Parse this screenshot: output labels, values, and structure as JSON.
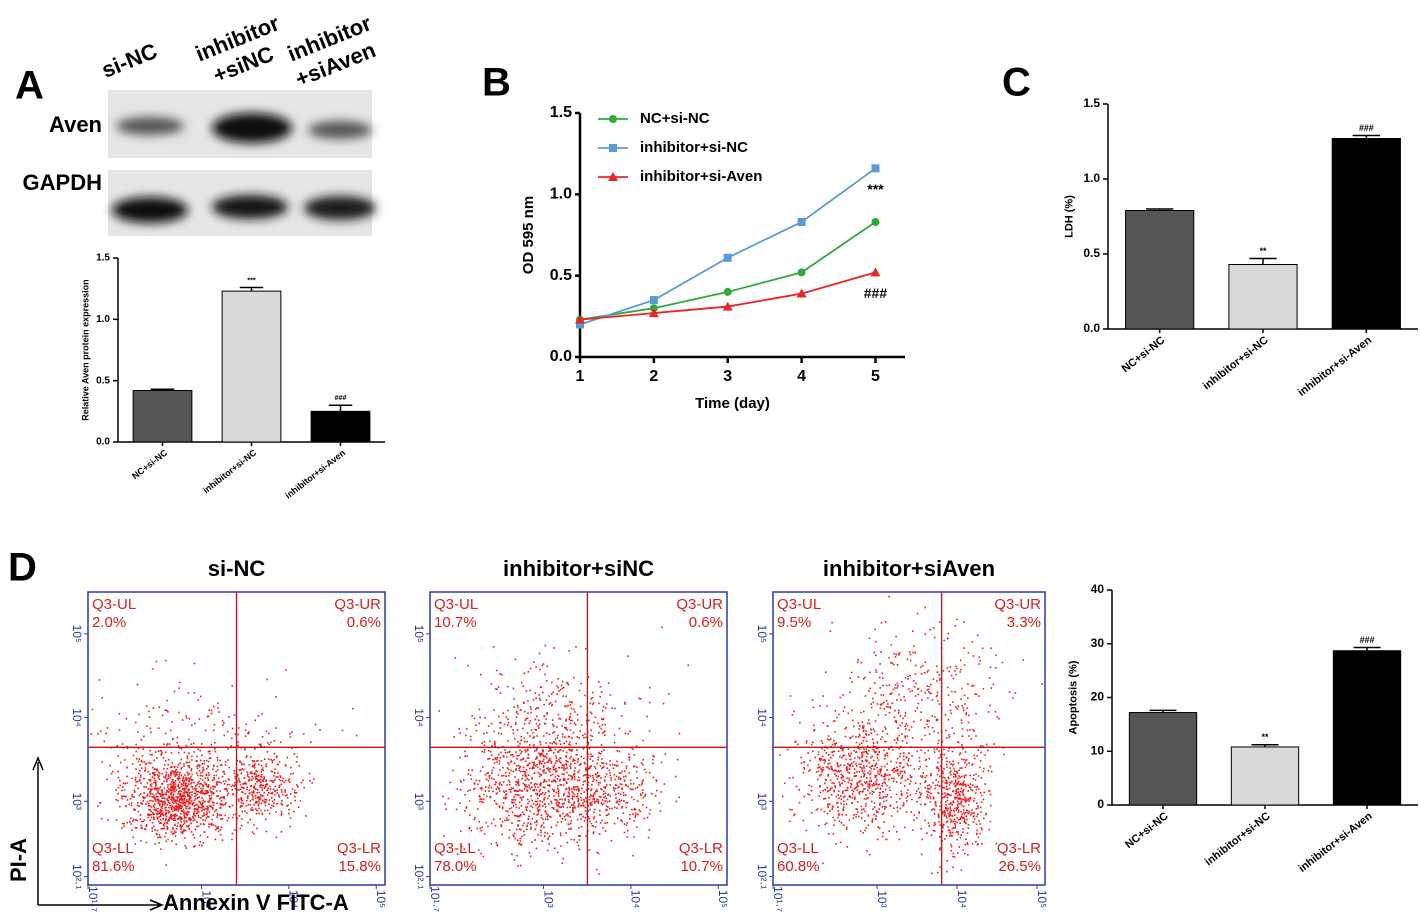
{
  "figure": {
    "panel_labels": [
      "A",
      "B",
      "C",
      "D"
    ],
    "blot": {
      "lanes": [
        [
          "si-NC"
        ],
        [
          "inhibitor",
          "+siNC"
        ],
        [
          "inhibitor",
          "+siAven"
        ]
      ],
      "rows": [
        "Aven",
        "GAPDH"
      ]
    },
    "flow": {
      "y_label": "PI-A",
      "x_label": "Annexin V FITC-A",
      "xlim": [
        1.7,
        5.1
      ],
      "ylim": [
        2.0,
        5.5
      ],
      "xticks": [
        {
          "value": 1.7,
          "label": "10¹·⁷"
        },
        {
          "value": 3,
          "label": "10³"
        },
        {
          "value": 4,
          "label": "10⁴"
        },
        {
          "value": 5,
          "label": "10⁵"
        }
      ],
      "yticks": [
        {
          "value": 2.1,
          "label": "10²·¹"
        },
        {
          "value": 3,
          "label": "10³"
        },
        {
          "value": 4,
          "label": "10⁴"
        },
        {
          "value": 5,
          "label": "10⁵"
        }
      ],
      "plots": [
        {
          "title": "si-NC",
          "quadrants": [
            {
              "name": "Q3-UL",
              "percent": "2.0%"
            },
            {
              "name": "Q3-UR",
              "percent": "0.6%"
            },
            {
              "name": "Q3-LL",
              "percent": "81.6%"
            },
            {
              "name": "Q3-LR",
              "percent": "15.8%"
            }
          ]
        },
        {
          "title": "inhibitor+siNC",
          "quadrants": [
            {
              "name": "Q3-UL",
              "percent": "10.7%"
            },
            {
              "name": "Q3-UR",
              "percent": "0.6%"
            },
            {
              "name": "Q3-LL",
              "percent": "78.0%"
            },
            {
              "name": "Q3-LR",
              "percent": "10.7%"
            }
          ]
        },
        {
          "title": "inhibitor+siAven",
          "quadrants": [
            {
              "name": "Q3-UL",
              "percent": "9.5%"
            },
            {
              "name": "Q3-UR",
              "percent": "3.3%"
            },
            {
              "name": "Q3-LL",
              "percent": "60.8%"
            },
            {
              "name": "Q3-LR",
              "percent": "26.5%"
            }
          ]
        }
      ]
    }
  },
  "chart_data": [
    {
      "type": "bar",
      "y_label": "Relative Aven protein expression",
      "categories": [
        "NC+si-NC",
        "inhibitor+si-NC",
        "inhibitor+si-Aven"
      ],
      "values": [
        0.42,
        1.23,
        0.25
      ],
      "errors": [
        0.01,
        0.03,
        0.05
      ],
      "colors": [
        "#555555",
        "#d9d9d9",
        "#000000"
      ],
      "significance": [
        null,
        "***",
        "###"
      ],
      "ylim": [
        0,
        1.5
      ],
      "yticks": [
        {
          "value": 0,
          "label": "0.0"
        },
        0.5,
        {
          "value": 1,
          "label": "1.0"
        },
        1.5
      ]
    },
    {
      "type": "line",
      "x_label": "Time (day)",
      "y_label": "OD 595 nm",
      "legend": "upper left",
      "x": [
        1,
        2,
        3,
        4,
        5
      ],
      "xlim": [
        1,
        5.4
      ],
      "xticks": [
        1,
        2,
        3,
        4,
        5
      ],
      "ylim": [
        0,
        1.5
      ],
      "yticks": [
        {
          "value": 0,
          "label": "0.0"
        },
        0.5,
        {
          "value": 1,
          "label": "1.0"
        },
        1.5
      ],
      "series": [
        {
          "name": "NC+si-NC",
          "color": "#2eaa3c",
          "marker": "circle",
          "values": [
            0.23,
            0.3,
            0.4,
            0.52,
            0.83
          ]
        },
        {
          "name": "inhibitor+si-NC",
          "color": "#5b9bd5",
          "marker": "square",
          "values": [
            0.2,
            0.35,
            0.61,
            0.83,
            1.16
          ],
          "annotation": "***"
        },
        {
          "name": "inhibitor+si-Aven",
          "color": "#e8262a",
          "marker": "triangle",
          "values": [
            0.23,
            0.27,
            0.31,
            0.39,
            0.52
          ],
          "annotation": "###"
        }
      ]
    },
    {
      "type": "bar",
      "y_label": "LDH (%)",
      "categories": [
        "NC+si-NC",
        "inhibitor+si-NC",
        "inhibitor+si-Aven"
      ],
      "values": [
        0.79,
        0.43,
        1.27
      ],
      "errors": [
        0.01,
        0.04,
        0.02
      ],
      "colors": [
        "#555555",
        "#d9d9d9",
        "#000000"
      ],
      "significance": [
        null,
        "**",
        "###"
      ],
      "ylim": [
        0,
        1.5
      ],
      "yticks": [
        {
          "value": 0,
          "label": "0.0"
        },
        0.5,
        {
          "value": 1,
          "label": "1.0"
        },
        1.5
      ]
    },
    {
      "type": "bar",
      "y_label": "Apoptosis (%)",
      "categories": [
        "NC+si-NC",
        "inhibitor+si-NC",
        "inhibitor+si-Aven"
      ],
      "values": [
        17.2,
        10.8,
        28.7
      ],
      "errors": [
        0.4,
        0.4,
        0.6
      ],
      "colors": [
        "#555555",
        "#d9d9d9",
        "#000000"
      ],
      "significance": [
        null,
        "**",
        "###"
      ],
      "ylim": [
        0,
        40
      ],
      "yticks": [
        0,
        10,
        20,
        30,
        40
      ]
    }
  ]
}
